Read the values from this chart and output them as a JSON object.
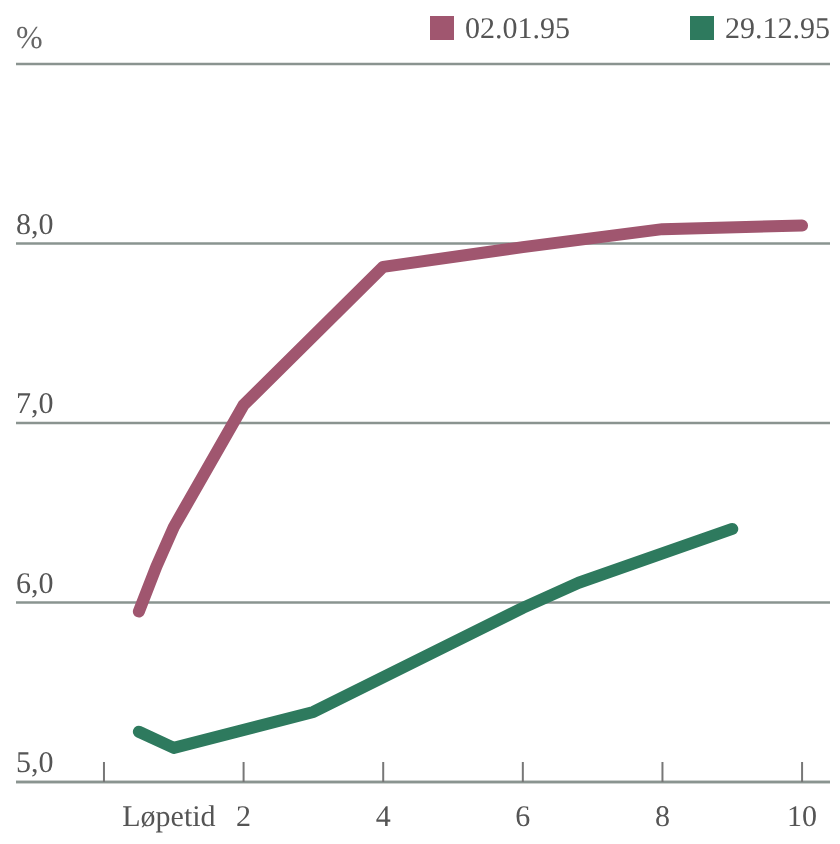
{
  "chart_data": {
    "type": "line",
    "xlabel": "Løpetid",
    "ylabel": "%",
    "xlim": [
      -1.26,
      10.4
    ],
    "xticks": [
      {
        "value": 0,
        "label": null
      },
      2,
      4,
      6,
      8,
      10
    ],
    "ylim": [
      5,
      9
    ],
    "yticks": [
      {
        "value": 5,
        "label": "5,0"
      },
      {
        "value": 6,
        "label": "6,0"
      },
      {
        "value": 7,
        "label": "7,0"
      },
      {
        "value": 8,
        "label": "8,0"
      },
      {
        "value": 9,
        "label": null
      }
    ],
    "grid": "y",
    "legend": "top right",
    "marker": "none",
    "line_style": "solid",
    "series": [
      {
        "name": "02.01.95",
        "color": "#a0566f",
        "x": [
          0.5,
          0.75,
          1,
          2,
          4,
          6,
          8,
          10
        ],
        "values": [
          5.95,
          6.2,
          6.42,
          7.1,
          7.87,
          7.98,
          8.08,
          8.1
        ]
      },
      {
        "name": "29.12.95",
        "color": "#2e7a5e",
        "x": [
          0.5,
          1,
          3,
          6,
          6.8,
          9
        ],
        "values": [
          5.28,
          5.19,
          5.39,
          5.97,
          6.11,
          6.41
        ]
      }
    ]
  }
}
